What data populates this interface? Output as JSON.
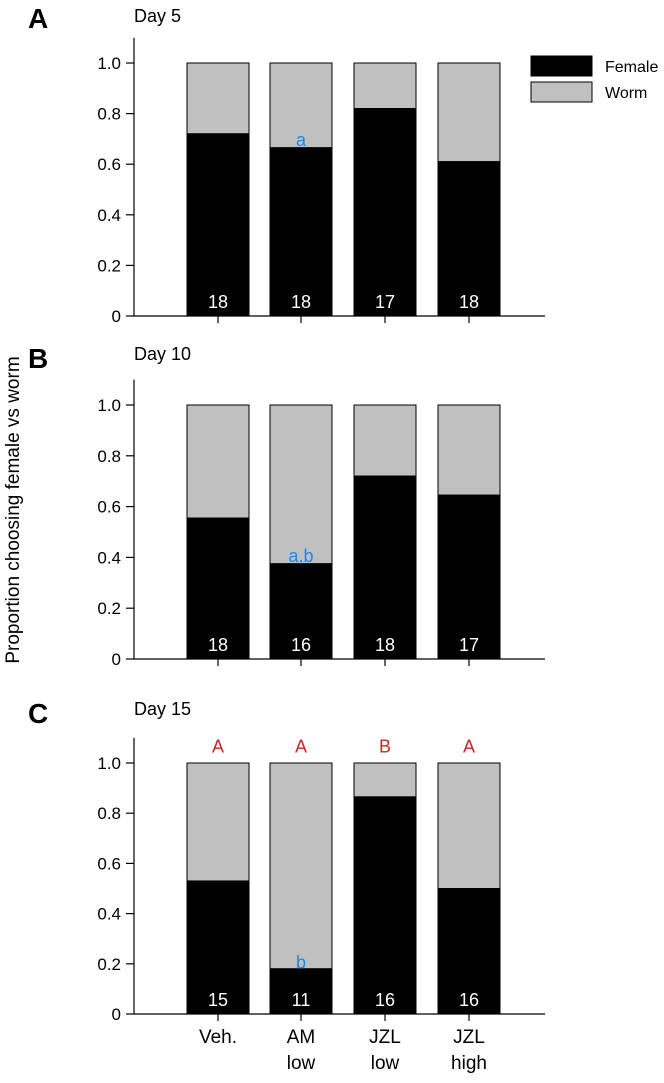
{
  "figure": {
    "ylabel": "Proportion choosing female vs worm",
    "legend": {
      "position": "top-right",
      "items": [
        {
          "label": "Female",
          "color": "#000000"
        },
        {
          "label": "Worm",
          "color": "#c0c0c0"
        }
      ]
    },
    "colors": {
      "female": "#000000",
      "worm": "#c0c0c0",
      "blue_letter": "#1e88e5",
      "red_letter": "#c62828"
    }
  },
  "chart_data": [
    {
      "type": "bar",
      "stacked": true,
      "panel_letter": "A",
      "title": "Day 5",
      "categories": [
        "Veh.",
        "AM low",
        "JZL low",
        "JZL high"
      ],
      "series": [
        {
          "name": "Female",
          "values": [
            0.72,
            0.665,
            0.82,
            0.61
          ]
        },
        {
          "name": "Worm",
          "values": [
            0.28,
            0.335,
            0.18,
            0.39
          ]
        }
      ],
      "n": [
        "18",
        "18",
        "17",
        "18"
      ],
      "yticks": [
        "0",
        "0.2",
        "0.4",
        "0.6",
        "0.8",
        "1.0"
      ],
      "ylim": [
        0,
        1.1
      ],
      "annotations": [
        {
          "category": "AM low",
          "text": "a",
          "y": 0.7,
          "color": "blue"
        }
      ]
    },
    {
      "type": "bar",
      "stacked": true,
      "panel_letter": "B",
      "title": "Day 10",
      "categories": [
        "Veh.",
        "AM low",
        "JZL low",
        "JZL high"
      ],
      "series": [
        {
          "name": "Female",
          "values": [
            0.555,
            0.375,
            0.72,
            0.645
          ]
        },
        {
          "name": "Worm",
          "values": [
            0.445,
            0.625,
            0.28,
            0.355
          ]
        }
      ],
      "n": [
        "18",
        "16",
        "18",
        "17"
      ],
      "yticks": [
        "0",
        "0.2",
        "0.4",
        "0.6",
        "0.8",
        "1.0"
      ],
      "ylim": [
        0,
        1.1
      ],
      "annotations": [
        {
          "category": "AM low",
          "text": "a,b",
          "y": 0.41,
          "color": "blue"
        }
      ]
    },
    {
      "type": "bar",
      "stacked": true,
      "panel_letter": "C",
      "title": "Day 15",
      "categories": [
        "Veh.",
        "AM low",
        "JZL low",
        "JZL high"
      ],
      "xticklabels": [
        [
          "Veh."
        ],
        [
          "AM",
          "low"
        ],
        [
          "JZL",
          "low"
        ],
        [
          "JZL",
          "high"
        ]
      ],
      "series": [
        {
          "name": "Female",
          "values": [
            0.53,
            0.18,
            0.865,
            0.5
          ]
        },
        {
          "name": "Worm",
          "values": [
            0.47,
            0.82,
            0.135,
            0.5
          ]
        }
      ],
      "n": [
        "15",
        "11",
        "16",
        "16"
      ],
      "yticks": [
        "0",
        "0.2",
        "0.4",
        "0.6",
        "0.8",
        "1.0"
      ],
      "ylim": [
        0,
        1.1
      ],
      "annotations": [
        {
          "category": "AM low",
          "text": "b",
          "y": 0.21,
          "color": "blue"
        },
        {
          "category": "Veh.",
          "text": "A",
          "y": 1.07,
          "color": "red"
        },
        {
          "category": "AM low",
          "text": "A",
          "y": 1.07,
          "color": "red"
        },
        {
          "category": "JZL low",
          "text": "B",
          "y": 1.07,
          "color": "red"
        },
        {
          "category": "JZL high",
          "text": "A",
          "y": 1.07,
          "color": "red"
        }
      ]
    }
  ]
}
